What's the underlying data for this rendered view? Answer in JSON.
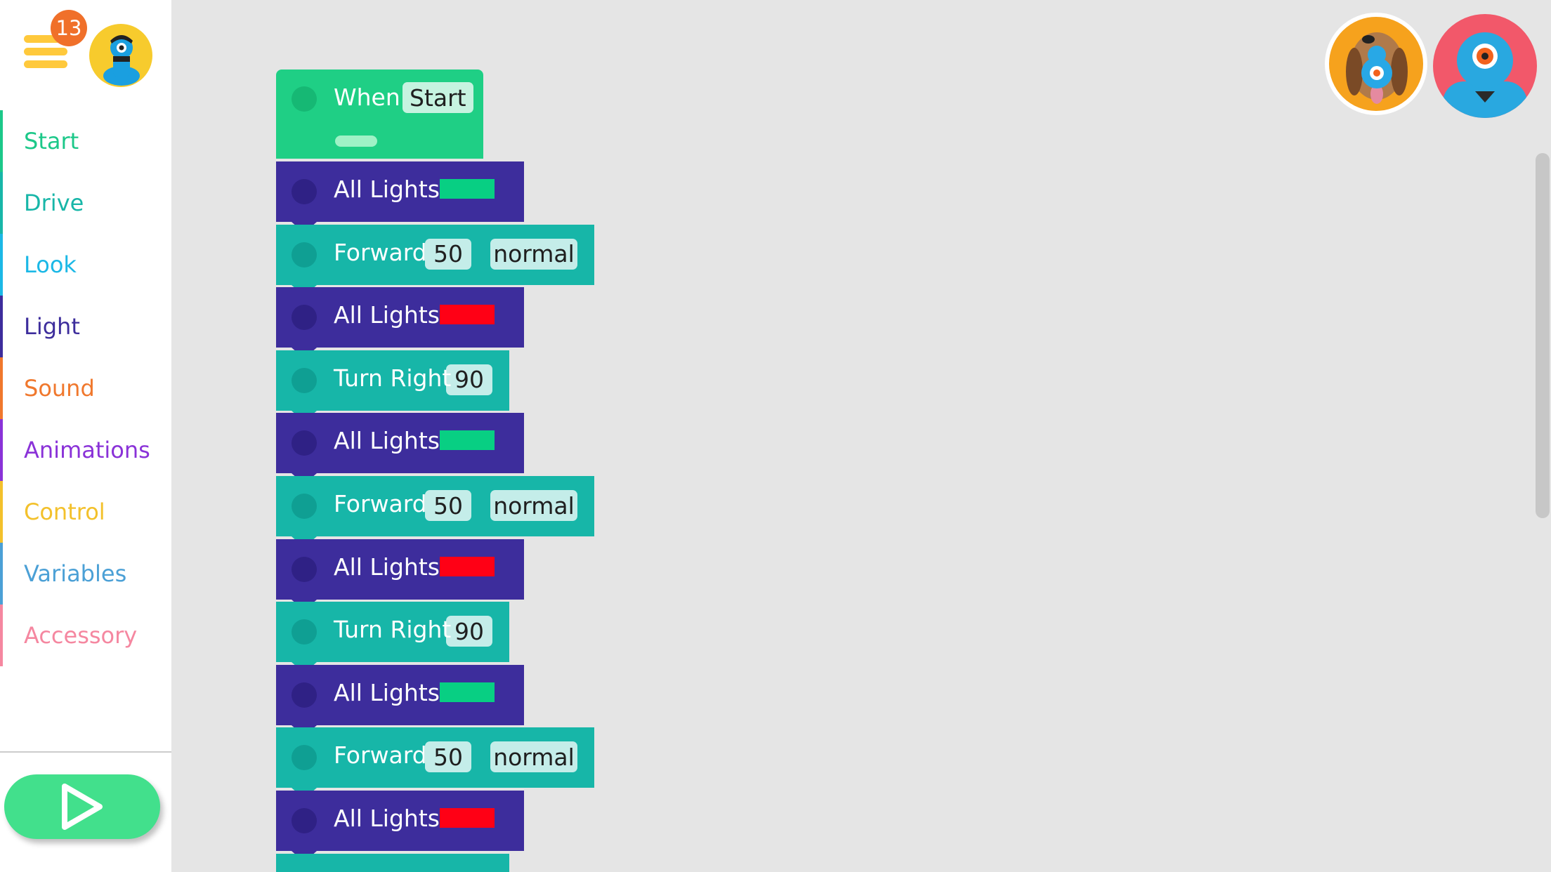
{
  "header": {
    "menu_badge": "13"
  },
  "sidebar": {
    "categories": [
      {
        "label": "Start",
        "color": "#1cc889"
      },
      {
        "label": "Drive",
        "color": "#17b6a8"
      },
      {
        "label": "Look",
        "color": "#1bb8e6"
      },
      {
        "label": "Light",
        "color": "#3d2d9c"
      },
      {
        "label": "Sound",
        "color": "#f0782d"
      },
      {
        "label": "Animations",
        "color": "#8a32d8"
      },
      {
        "label": "Control",
        "color": "#f3c12c"
      },
      {
        "label": "Variables",
        "color": "#4ba0d6"
      },
      {
        "label": "Accessory",
        "color": "#f587a0"
      }
    ],
    "play_icon": "play-icon"
  },
  "colors": {
    "start_green": "#1fcf85",
    "light_purple": "#3d2d9c",
    "drive_teal": "#17b6a8",
    "light_green": "#08cf83",
    "light_red": "#ff0015"
  },
  "program": {
    "trigger": {
      "label": "When",
      "event": "Start"
    },
    "blocks": [
      {
        "type": "light",
        "label": "All Lights",
        "color": "green"
      },
      {
        "type": "drive",
        "label": "Forward",
        "value": "50",
        "speed": "normal"
      },
      {
        "type": "light",
        "label": "All Lights",
        "color": "red"
      },
      {
        "type": "turn",
        "label": "Turn Right",
        "value": "90"
      },
      {
        "type": "light",
        "label": "All Lights",
        "color": "green"
      },
      {
        "type": "drive",
        "label": "Forward",
        "value": "50",
        "speed": "normal"
      },
      {
        "type": "light",
        "label": "All Lights",
        "color": "red"
      },
      {
        "type": "turn",
        "label": "Turn Right",
        "value": "90"
      },
      {
        "type": "light",
        "label": "All Lights",
        "color": "green"
      },
      {
        "type": "drive",
        "label": "Forward",
        "value": "50",
        "speed": "normal"
      },
      {
        "type": "light",
        "label": "All Lights",
        "color": "red"
      }
    ]
  },
  "robots": [
    {
      "name": "Dot-dog robot",
      "icon": "dash-with-dog-icon"
    },
    {
      "name": "Dash robot",
      "icon": "dash-robot-icon"
    }
  ]
}
